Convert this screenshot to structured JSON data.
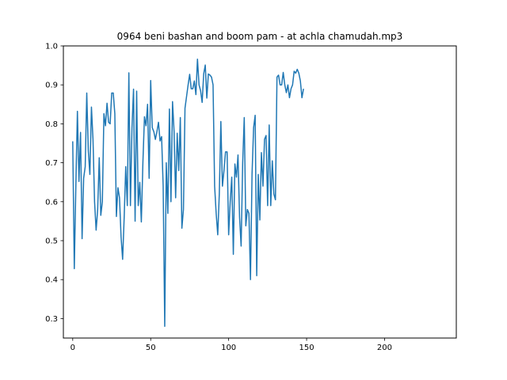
{
  "chart_data": {
    "type": "line",
    "title": "0964 beni bashan and boom pam - at achla chamudah.mp3",
    "xlabel": "",
    "ylabel": "",
    "xlim": [
      -6,
      246
    ],
    "ylim": [
      0.25,
      1.0
    ],
    "xticks": [
      0,
      50,
      100,
      150,
      200
    ],
    "yticks": [
      0.3,
      0.4,
      0.5,
      0.6,
      0.7,
      0.8,
      0.9,
      1.0
    ],
    "grid": false,
    "legend": "none",
    "color": "#1f77b4",
    "x_start": 0,
    "x_step": 1,
    "values": [
      0.755,
      0.428,
      0.64,
      0.832,
      0.652,
      0.778,
      0.505,
      0.66,
      0.69,
      0.879,
      0.73,
      0.67,
      0.843,
      0.76,
      0.6,
      0.527,
      0.58,
      0.713,
      0.565,
      0.6,
      0.826,
      0.795,
      0.853,
      0.804,
      0.8,
      0.879,
      0.879,
      0.826,
      0.562,
      0.636,
      0.61,
      0.51,
      0.452,
      0.56,
      0.69,
      0.59,
      0.931,
      0.59,
      0.79,
      0.889,
      0.55,
      0.884,
      0.59,
      0.65,
      0.548,
      0.7,
      0.818,
      0.795,
      0.85,
      0.66,
      0.911,
      0.79,
      0.78,
      0.76,
      0.78,
      0.804,
      0.756,
      0.767,
      0.64,
      0.28,
      0.7,
      0.57,
      0.838,
      0.6,
      0.857,
      0.78,
      0.61,
      0.776,
      0.68,
      0.816,
      0.532,
      0.58,
      0.84,
      0.87,
      0.9,
      0.927,
      0.89,
      0.89,
      0.91,
      0.875,
      0.966,
      0.9,
      0.885,
      0.855,
      0.928,
      0.951,
      0.866,
      0.928,
      0.925,
      0.92,
      0.9,
      0.64,
      0.57,
      0.515,
      0.62,
      0.806,
      0.64,
      0.68,
      0.728,
      0.728,
      0.515,
      0.6,
      0.663,
      0.465,
      0.697,
      0.663,
      0.72,
      0.56,
      0.486,
      0.7,
      0.816,
      0.538,
      0.58,
      0.57,
      0.4,
      0.67,
      0.79,
      0.822,
      0.41,
      0.67,
      0.553,
      0.726,
      0.64,
      0.76,
      0.77,
      0.59,
      0.797,
      0.59,
      0.705,
      0.62,
      0.605,
      0.92,
      0.925,
      0.9,
      0.9,
      0.932,
      0.9,
      0.88,
      0.9,
      0.867,
      0.89,
      0.9,
      0.935,
      0.93,
      0.94,
      0.93,
      0.91,
      0.867,
      0.89
    ]
  }
}
